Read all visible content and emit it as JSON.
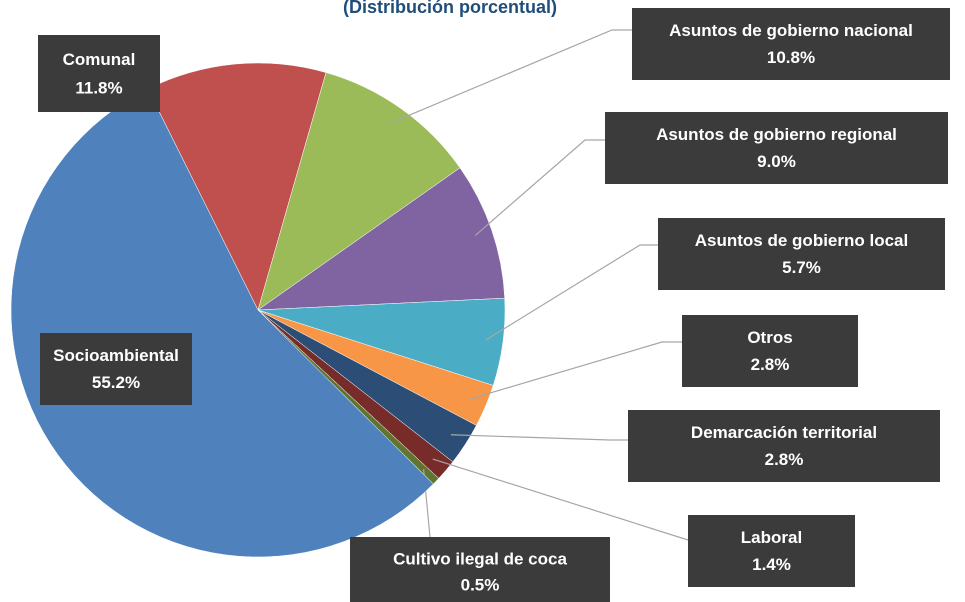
{
  "chart_data": {
    "type": "pie",
    "subtitle": "(Distribución porcentual)",
    "categories": [
      "Comunal",
      "Asuntos de gobierno nacional",
      "Asuntos de gobierno regional",
      "Asuntos de gobierno local",
      "Otros",
      "Demarcación territorial",
      "Laboral",
      "Cultivo ilegal de coca",
      "Socioambiental"
    ],
    "values": [
      11.8,
      10.8,
      9.0,
      5.7,
      2.8,
      2.8,
      1.4,
      0.5,
      55.2
    ],
    "value_labels": [
      "11.8%",
      "10.8%",
      "9.0%",
      "5.7%",
      "2.8%",
      "2.8%",
      "1.4%",
      "0.5%",
      "55.2%"
    ],
    "colors": [
      "#c0504d",
      "#9bbb59",
      "#8064a2",
      "#4bacc6",
      "#f79646",
      "#2c4d75",
      "#772c2a",
      "#5f7530",
      "#4f81bd"
    ]
  }
}
